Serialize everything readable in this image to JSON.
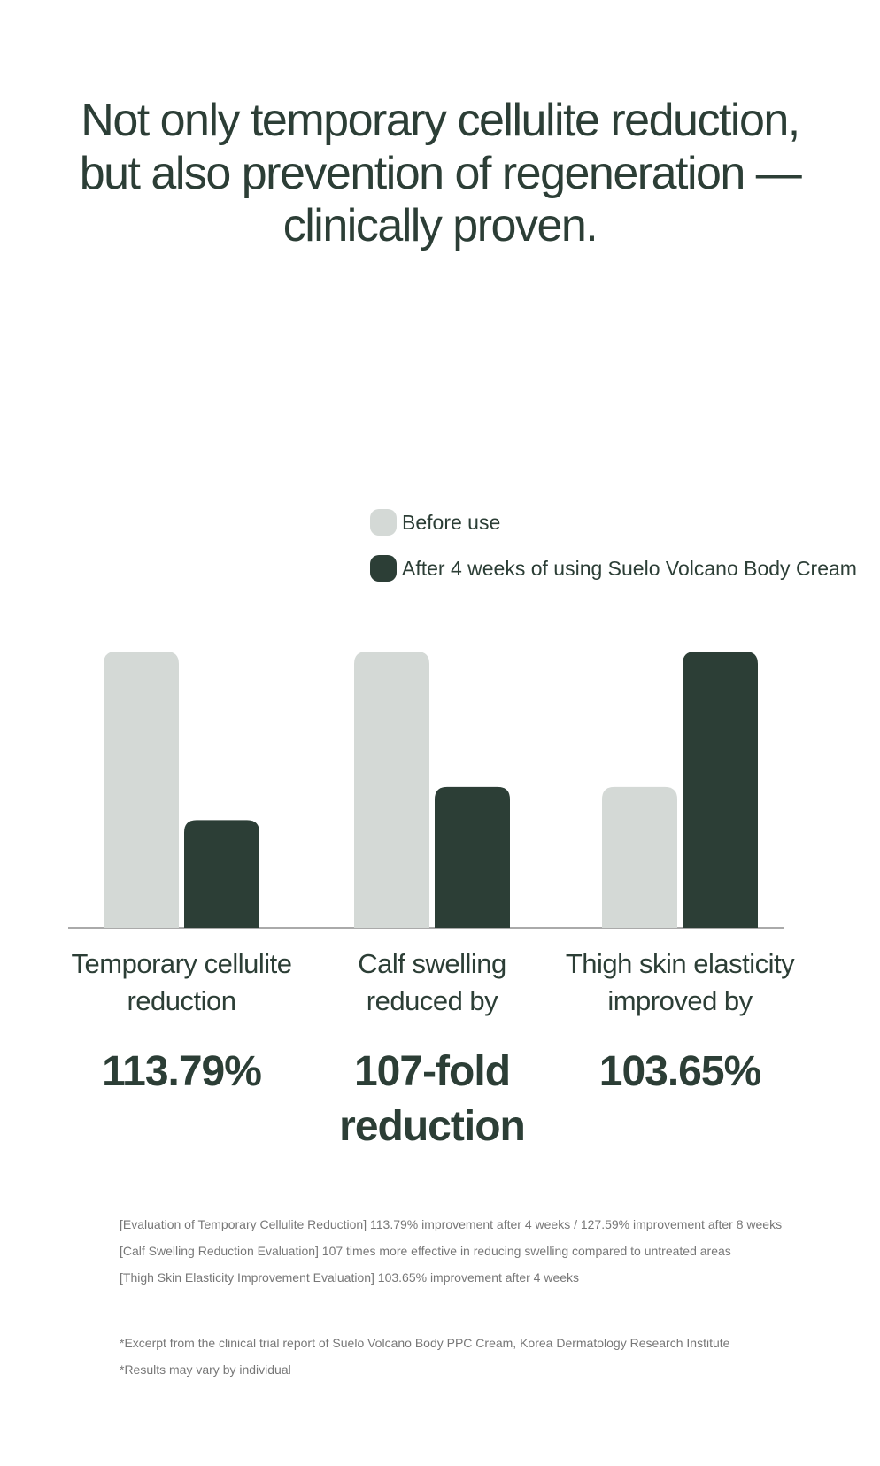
{
  "chart_data": {
    "type": "bar",
    "title": [
      "Not only temporary cellulite reduction,",
      "but also prevention of regeneration —",
      "clinically proven."
    ],
    "categories": [
      "Temporary cellulite reduction",
      "Calf swelling reduced by",
      "Thigh skin elasticity improved by"
    ],
    "series": [
      {
        "name": "Before use",
        "color": "#d4d9d6",
        "values": [
          100,
          100,
          51
        ]
      },
      {
        "name": "After 4 weeks of using Suelo Volcano Body Cream",
        "color": "#2c3e36",
        "values": [
          39,
          51,
          100
        ]
      }
    ],
    "ylim": [
      0,
      100
    ],
    "highlights": [
      "113.79%",
      "107-fold reduction",
      "103.65%"
    ],
    "notes": [
      "[Evaluation of Temporary Cellulite Reduction] 113.79% improvement after 4 weeks / 127.59% improvement after 8 weeks",
      "[Calf Swelling Reduction Evaluation] 107 times more effective in reducing swelling compared to untreated areas",
      "[Thigh Skin Elasticity Improvement Evaluation] 103.65% improvement after 4 weeks"
    ],
    "disclaimers": [
      "*Excerpt from the clinical trial report of Suelo Volcano Body PPC Cream, Korea Dermatology Research Institute",
      "*Results may vary by individual"
    ]
  }
}
